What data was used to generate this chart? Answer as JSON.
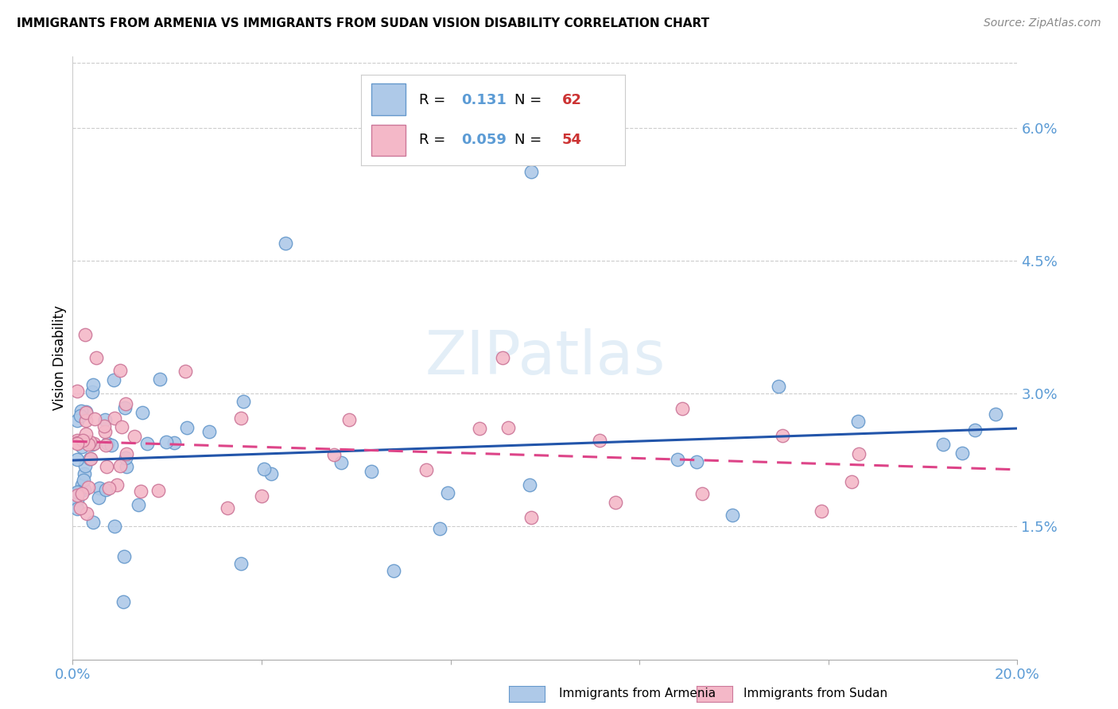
{
  "title": "IMMIGRANTS FROM ARMENIA VS IMMIGRANTS FROM SUDAN VISION DISABILITY CORRELATION CHART",
  "source": "Source: ZipAtlas.com",
  "ylabel": "Vision Disability",
  "legend_label1": "Immigrants from Armenia",
  "legend_label2": "Immigrants from Sudan",
  "r1": 0.131,
  "n1": 62,
  "r2": 0.059,
  "n2": 54,
  "scatter_color1_face": "#aec9e8",
  "scatter_color1_edge": "#6699cc",
  "scatter_color2_face": "#f4b8c8",
  "scatter_color2_edge": "#cc7799",
  "trend1_color": "#2255aa",
  "trend2_color": "#dd4488",
  "xmin": 0.0,
  "xmax": 0.2,
  "ymin": 0.0,
  "ymax": 0.068,
  "yticks": [
    0.015,
    0.03,
    0.045,
    0.06
  ],
  "xtick_labels": [
    "0.0%",
    "20.0%"
  ],
  "xtick_vals": [
    0.0,
    0.2
  ],
  "watermark": "ZIPatlas",
  "background_color": "#ffffff",
  "grid_color": "#cccccc",
  "tick_color": "#5b9bd5",
  "legend_r_color": "#5b9bd5",
  "legend_n_color": "#cc3333"
}
